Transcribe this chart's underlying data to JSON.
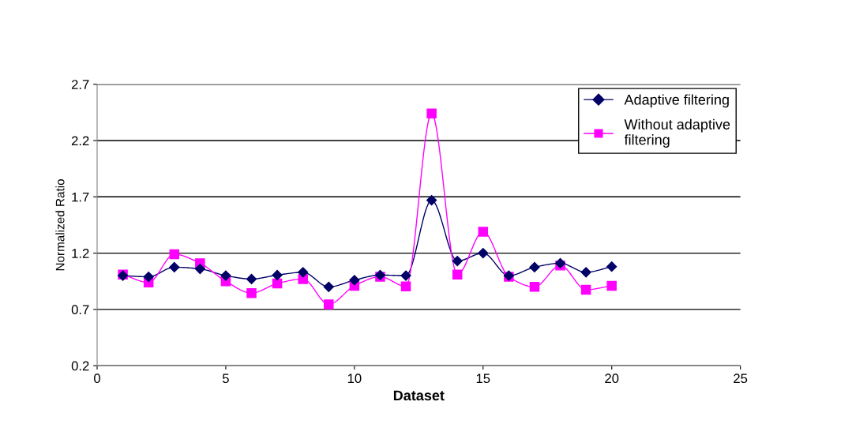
{
  "chart_data": {
    "type": "line",
    "xlabel": "Dataset",
    "ylabel": "Normalized Ratio",
    "xlim": [
      0,
      25
    ],
    "xticks": [
      0,
      5,
      10,
      15,
      20,
      25
    ],
    "ylim": [
      0.2,
      2.7
    ],
    "yticks": [
      0.2,
      0.7,
      1.2,
      1.7,
      2.2,
      2.7
    ],
    "x": [
      1,
      2,
      3,
      4,
      5,
      6,
      7,
      8,
      9,
      10,
      11,
      12,
      13,
      14,
      15,
      16,
      17,
      18,
      19,
      20
    ],
    "grid": "y",
    "legend": "top right",
    "series": [
      {
        "name": "Adaptive filtering",
        "color": "#000066",
        "marker": "diamond",
        "values": [
          1.0,
          0.99,
          1.075,
          1.06,
          1.0,
          0.97,
          1.005,
          1.03,
          0.9,
          0.96,
          1.005,
          1.0,
          1.67,
          1.13,
          1.2,
          1.0,
          1.075,
          1.11,
          1.03,
          1.08
        ]
      },
      {
        "name": "Without adaptive\nfiltering",
        "color": "#ff00ff",
        "marker": "square",
        "values": [
          1.01,
          0.94,
          1.19,
          1.11,
          0.95,
          0.845,
          0.93,
          0.97,
          0.745,
          0.91,
          0.99,
          0.905,
          2.44,
          1.01,
          1.39,
          0.99,
          0.9,
          1.09,
          0.875,
          0.91
        ]
      }
    ]
  }
}
